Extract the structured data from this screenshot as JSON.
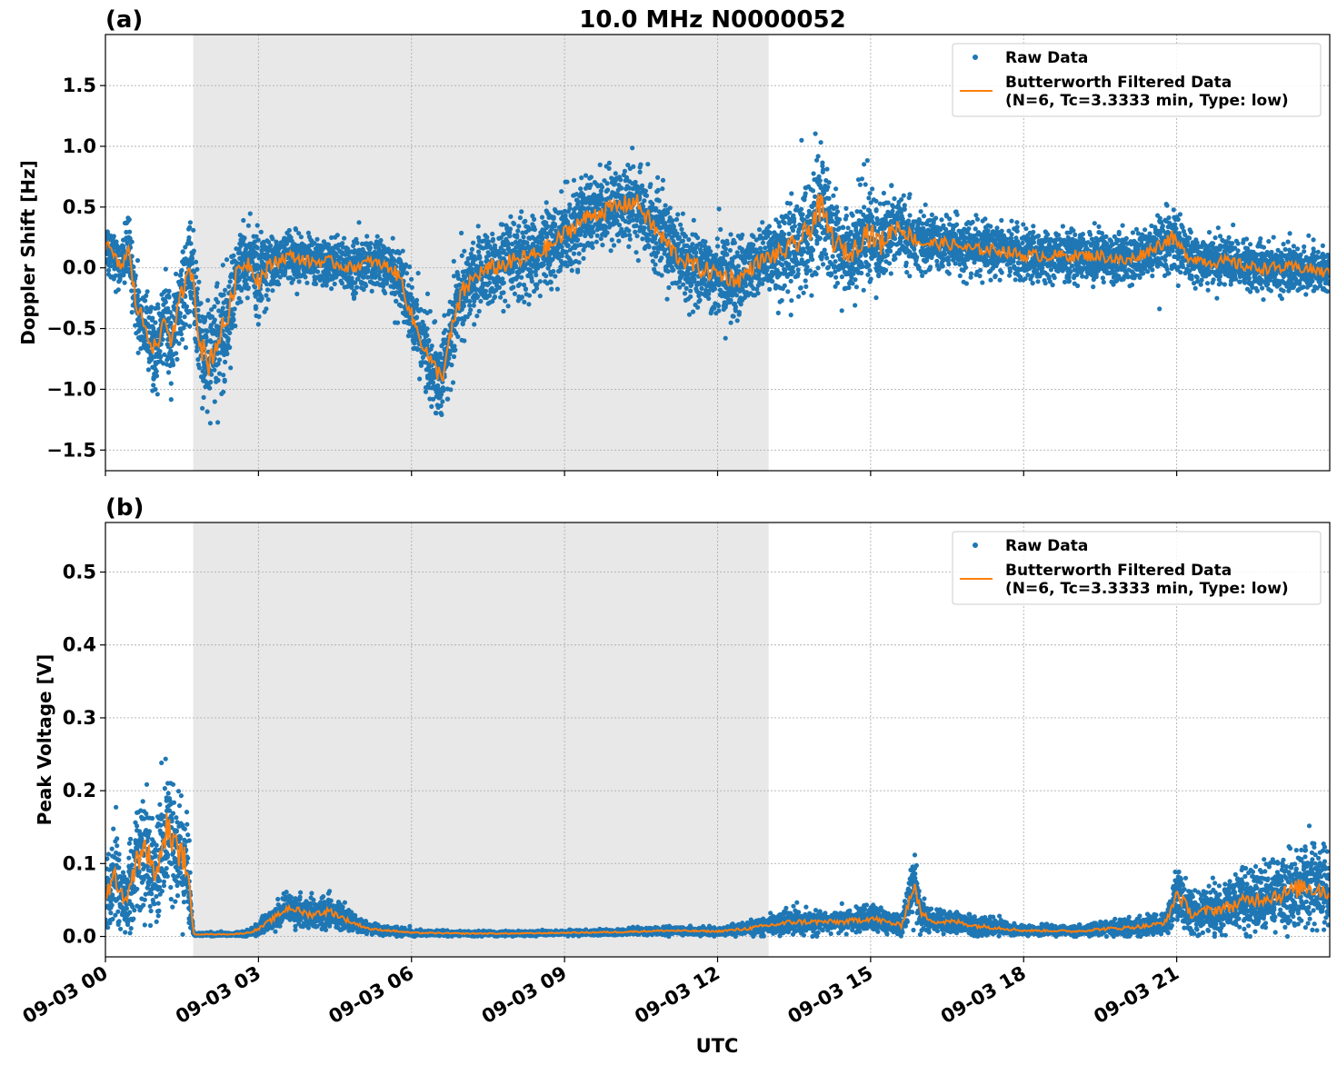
{
  "figure": {
    "title": "10.0 MHz N0000052",
    "xlabel": "UTC"
  },
  "chart_data": [
    {
      "type": "scatter",
      "panel_label": "(a)",
      "ylabel": "Doppler Shift [Hz]",
      "xlim_hours": [
        0,
        24
      ],
      "ylim": [
        -1.67,
        1.92
      ],
      "yticks": [
        -1.5,
        -1.0,
        -0.5,
        0.0,
        0.5,
        1.0,
        1.5
      ],
      "ytick_labels": [
        "−1.5",
        "−1.0",
        "−0.5",
        "0.0",
        "0.5",
        "1.0",
        "1.5"
      ],
      "xticks_hours": [
        0,
        3,
        6,
        9,
        12,
        15,
        18,
        21
      ],
      "xtick_labels": [
        "09-03 00",
        "09-03 03",
        "09-03 06",
        "09-03 09",
        "09-03 12",
        "09-03 15",
        "09-03 18",
        "09-03 21"
      ],
      "shaded_span_hours": [
        1.72,
        13.0
      ],
      "grid": true,
      "legend_position": "top-right",
      "series": [
        {
          "name": "Raw Data",
          "style": "points",
          "color": "#1f77b4"
        },
        {
          "name": "Butterworth Filtered Data",
          "name_line2": "(N=6, Tc=3.3333 min, Type: low)",
          "style": "line",
          "color": "#ff7f0e"
        }
      ],
      "filtered_x_hours": [
        0,
        0.3,
        0.45,
        0.6,
        0.8,
        1.0,
        1.15,
        1.3,
        1.5,
        1.7,
        1.85,
        2.0,
        2.2,
        2.4,
        2.6,
        2.8,
        3.0,
        3.3,
        3.6,
        4.0,
        4.4,
        4.8,
        5.2,
        5.6,
        5.8,
        6.0,
        6.2,
        6.4,
        6.6,
        6.8,
        7.0,
        7.3,
        7.6,
        8.0,
        8.4,
        8.8,
        9.2,
        9.6,
        10.0,
        10.4,
        10.8,
        11.2,
        11.6,
        12.0,
        12.4,
        12.8,
        13.1,
        13.4,
        13.7,
        14.0,
        14.3,
        14.6,
        14.9,
        15.2,
        15.5,
        16.0,
        16.5,
        17.0,
        17.5,
        18.0,
        18.5,
        19.0,
        19.5,
        20.0,
        20.5,
        20.9,
        21.2,
        21.6,
        22.0,
        22.5,
        23.0,
        23.5,
        24.0
      ],
      "filtered_y": [
        0.2,
        0.0,
        0.15,
        -0.3,
        -0.5,
        -0.7,
        -0.4,
        -0.6,
        -0.2,
        0.0,
        -0.6,
        -0.8,
        -0.6,
        -0.4,
        0.0,
        0.05,
        -0.1,
        0.05,
        0.1,
        0.05,
        0.05,
        0.0,
        0.05,
        0.0,
        -0.1,
        -0.4,
        -0.6,
        -0.8,
        -0.9,
        -0.5,
        -0.2,
        -0.05,
        0.0,
        0.05,
        0.1,
        0.2,
        0.35,
        0.45,
        0.5,
        0.55,
        0.3,
        0.1,
        0.0,
        -0.05,
        -0.1,
        0.05,
        0.1,
        0.15,
        0.25,
        0.5,
        0.2,
        0.1,
        0.3,
        0.2,
        0.35,
        0.2,
        0.2,
        0.15,
        0.15,
        0.1,
        0.1,
        0.1,
        0.1,
        0.05,
        0.15,
        0.25,
        0.1,
        0.05,
        0.05,
        0.0,
        0.0,
        0.0,
        -0.05
      ],
      "raw_spread": [
        0.25,
        0.2,
        0.25,
        0.3,
        0.35,
        0.3,
        0.3,
        0.35,
        0.3,
        0.35,
        0.45,
        0.5,
        0.45,
        0.4,
        0.3,
        0.25,
        0.35,
        0.25,
        0.2,
        0.2,
        0.2,
        0.2,
        0.2,
        0.2,
        0.25,
        0.3,
        0.3,
        0.3,
        0.3,
        0.35,
        0.35,
        0.3,
        0.3,
        0.3,
        0.3,
        0.3,
        0.3,
        0.3,
        0.3,
        0.3,
        0.35,
        0.3,
        0.3,
        0.3,
        0.3,
        0.25,
        0.3,
        0.35,
        0.45,
        0.55,
        0.4,
        0.3,
        0.45,
        0.4,
        0.3,
        0.2,
        0.2,
        0.2,
        0.2,
        0.2,
        0.2,
        0.2,
        0.2,
        0.2,
        0.2,
        0.25,
        0.2,
        0.2,
        0.2,
        0.2,
        0.2,
        0.2,
        0.2
      ]
    },
    {
      "type": "scatter",
      "panel_label": "(b)",
      "ylabel": "Peak Voltage [V]",
      "xlim_hours": [
        0,
        24
      ],
      "ylim": [
        -0.028,
        0.568
      ],
      "yticks": [
        0.0,
        0.1,
        0.2,
        0.3,
        0.4,
        0.5
      ],
      "ytick_labels": [
        "0.0",
        "0.1",
        "0.2",
        "0.3",
        "0.4",
        "0.5"
      ],
      "xticks_hours": [
        0,
        3,
        6,
        9,
        12,
        15,
        18,
        21
      ],
      "xtick_labels": [
        "09-03 00",
        "09-03 03",
        "09-03 06",
        "09-03 09",
        "09-03 12",
        "09-03 15",
        "09-03 18",
        "09-03 21"
      ],
      "shaded_span_hours": [
        1.72,
        13.0
      ],
      "grid": true,
      "legend_position": "top-right",
      "series": [
        {
          "name": "Raw Data",
          "style": "points",
          "color": "#1f77b4"
        },
        {
          "name": "Butterworth Filtered Data",
          "name_line2": "(N=6, Tc=3.3333 min, Type: low)",
          "style": "line",
          "color": "#ff7f0e"
        }
      ],
      "filtered_x_hours": [
        0,
        0.2,
        0.4,
        0.6,
        0.8,
        1.0,
        1.2,
        1.4,
        1.6,
        1.72,
        1.75,
        2.0,
        2.5,
        2.8,
        3.0,
        3.3,
        3.6,
        4.0,
        4.4,
        4.8,
        5.2,
        5.6,
        6.0,
        7.0,
        8.0,
        9.0,
        10.0,
        11.0,
        12.0,
        12.5,
        13.0,
        13.5,
        14.0,
        14.5,
        15.0,
        15.3,
        15.6,
        15.85,
        16.0,
        16.3,
        16.7,
        17.0,
        17.5,
        18.0,
        18.5,
        19.0,
        19.5,
        20.0,
        20.5,
        20.8,
        21.0,
        21.3,
        21.6,
        22.0,
        22.4,
        22.8,
        23.2,
        23.5,
        23.8,
        24.0
      ],
      "filtered_y": [
        0.06,
        0.08,
        0.05,
        0.1,
        0.12,
        0.08,
        0.15,
        0.12,
        0.1,
        0.005,
        0.003,
        0.003,
        0.003,
        0.005,
        0.01,
        0.025,
        0.04,
        0.03,
        0.035,
        0.02,
        0.01,
        0.008,
        0.005,
        0.004,
        0.004,
        0.005,
        0.006,
        0.008,
        0.007,
        0.01,
        0.015,
        0.02,
        0.02,
        0.02,
        0.025,
        0.02,
        0.015,
        0.07,
        0.03,
        0.02,
        0.02,
        0.015,
        0.012,
        0.008,
        0.008,
        0.007,
        0.01,
        0.012,
        0.015,
        0.02,
        0.06,
        0.03,
        0.035,
        0.04,
        0.05,
        0.055,
        0.06,
        0.07,
        0.065,
        0.06
      ],
      "raw_spread": [
        0.05,
        0.06,
        0.05,
        0.07,
        0.08,
        0.06,
        0.09,
        0.08,
        0.08,
        0.002,
        0.002,
        0.002,
        0.002,
        0.004,
        0.008,
        0.015,
        0.02,
        0.02,
        0.02,
        0.012,
        0.006,
        0.005,
        0.004,
        0.003,
        0.003,
        0.003,
        0.004,
        0.005,
        0.005,
        0.008,
        0.012,
        0.015,
        0.014,
        0.014,
        0.018,
        0.015,
        0.012,
        0.04,
        0.02,
        0.014,
        0.014,
        0.012,
        0.01,
        0.006,
        0.006,
        0.006,
        0.008,
        0.01,
        0.012,
        0.015,
        0.04,
        0.025,
        0.03,
        0.035,
        0.04,
        0.045,
        0.05,
        0.055,
        0.055,
        0.05
      ]
    }
  ]
}
